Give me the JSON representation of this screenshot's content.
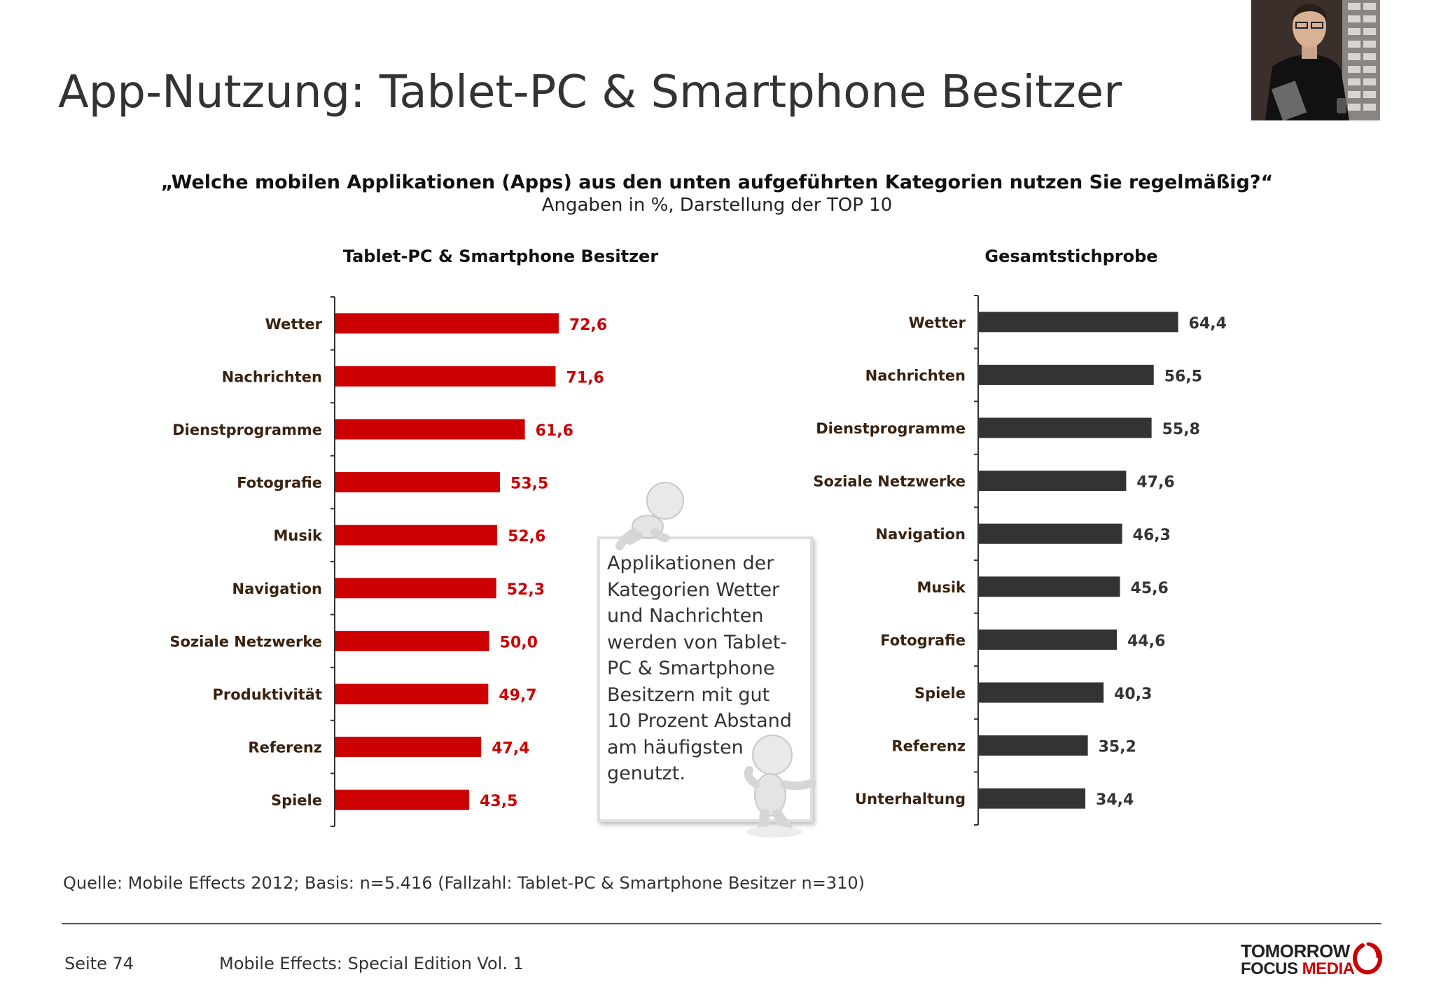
{
  "slide": {
    "title": "App-Nutzung: Tablet-PC & Smartphone Besitzer",
    "question": "„Welche mobilen Applikationen (Apps) aus den unten aufgeführten Kategorien nutzen Sie regelmäßig?“",
    "subtitle": "Angaben in %, Darstellung der TOP 10",
    "callout_lines": [
      "Applikationen der",
      "Kategorien Wetter",
      "und Nachrichten",
      "werden von Tablet-",
      "PC & Smartphone",
      "Besitzern mit gut",
      "10 Prozent Abstand",
      "am häufigsten",
      "genutzt."
    ],
    "source": "Quelle: Mobile Effects 2012; Basis: n=5.416 (Fallzahl: Tablet-PC & Smartphone Besitzer n=310)",
    "page": "Seite 74",
    "footer_title": "Mobile Effects: Special Edition Vol. 1",
    "logo_line1": "TOMORROW",
    "logo_line2a": "FOCUS",
    "logo_line2b": "MEDIA"
  },
  "chart_data": [
    {
      "type": "bar",
      "orientation": "horizontal",
      "title": "Tablet-PC & Smartphone Besitzer",
      "categories": [
        "Wetter",
        "Nachrichten",
        "Dienstprogramme",
        "Fotografie",
        "Musik",
        "Navigation",
        "Soziale Netzwerke",
        "Produktivität",
        "Referenz",
        "Spiele"
      ],
      "values": [
        72.6,
        71.6,
        61.6,
        53.5,
        52.6,
        52.3,
        50.0,
        49.7,
        47.4,
        43.5
      ],
      "value_labels": [
        "72,6",
        "71,6",
        "61,6",
        "53,5",
        "52,6",
        "52,3",
        "50,0",
        "49,7",
        "47,4",
        "43,5"
      ],
      "color": "#cc0000",
      "label_color": "#cc0000"
    },
    {
      "type": "bar",
      "orientation": "horizontal",
      "title": "Gesamtstichprobe",
      "categories": [
        "Wetter",
        "Nachrichten",
        "Dienstprogramme",
        "Soziale Netzwerke",
        "Navigation",
        "Musik",
        "Fotografie",
        "Spiele",
        "Referenz",
        "Unterhaltung"
      ],
      "values": [
        64.4,
        56.5,
        55.8,
        47.6,
        46.3,
        45.6,
        44.6,
        40.3,
        35.2,
        34.4
      ],
      "value_labels": [
        "64,4",
        "56,5",
        "55,8",
        "47,6",
        "46,3",
        "45,6",
        "44,6",
        "40,3",
        "35,2",
        "34,4"
      ],
      "color": "#333333",
      "label_color": "#333333"
    }
  ]
}
